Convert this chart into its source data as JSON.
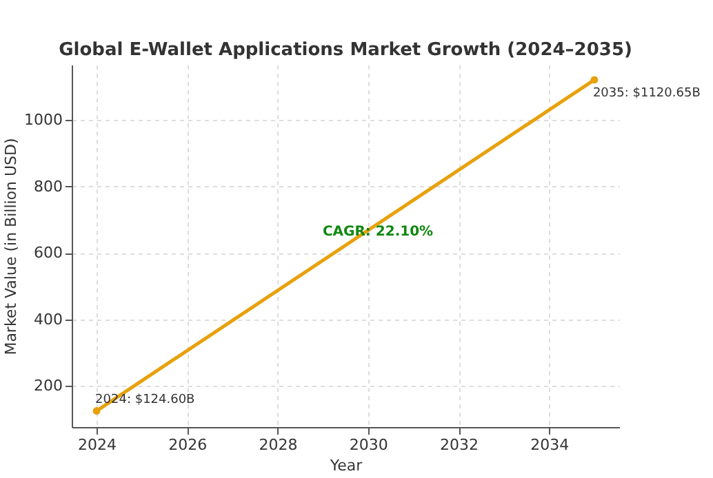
{
  "chart_data": {
    "type": "line",
    "title": "Global E-Wallet Applications Market Growth (2024–2035)",
    "xlabel": "Year",
    "ylabel": "Market Value (in Billion USD)",
    "x": [
      2024,
      2035
    ],
    "series": [
      {
        "color": "#e8a10c",
        "values": [
          124.6,
          1120.65
        ]
      }
    ],
    "xlim": [
      2023.45,
      2035.55
    ],
    "xticks": [
      2024,
      2026,
      2028,
      2030,
      2032,
      2034
    ],
    "ylim": [
      76,
      1166
    ],
    "yticks": [
      200,
      400,
      600,
      800,
      1000
    ],
    "grid": true,
    "marker": "circle",
    "annotations": [
      {
        "text": "2024: $124.60B",
        "x": 2024,
        "y": 124.6
      },
      {
        "text": "2035: $1120.65B",
        "x": 2035,
        "y": 1120.65
      },
      "CAGR: 22.10%"
    ]
  }
}
